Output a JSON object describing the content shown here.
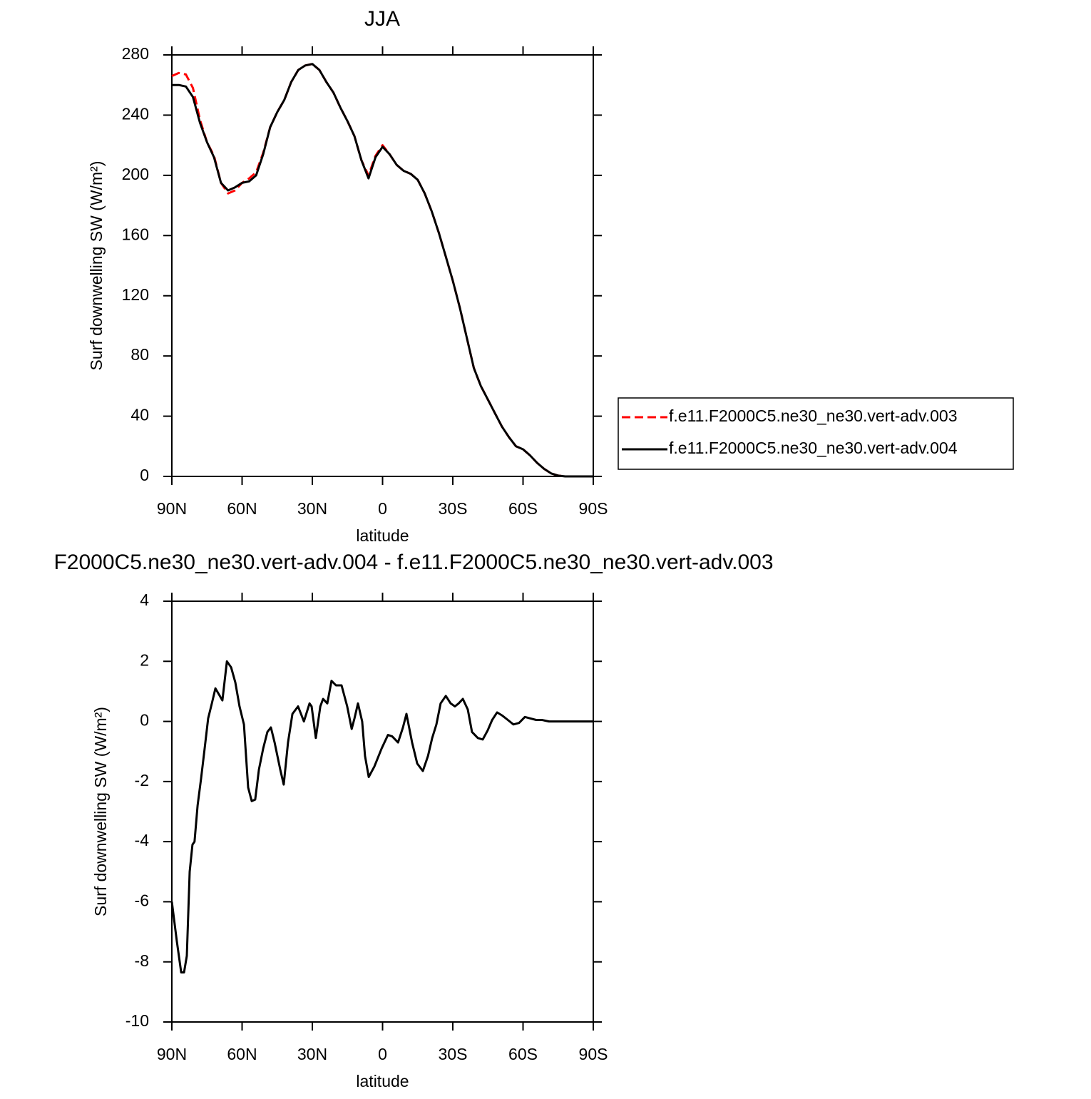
{
  "chart_data": [
    {
      "type": "line",
      "title": "JJA",
      "x_label": "latitude",
      "y_label": "Surf downwelling SW (W/m²)",
      "xlim": [
        90,
        -90
      ],
      "xticks": [
        {
          "value": 90,
          "label": "90N"
        },
        {
          "value": 60,
          "label": "60N"
        },
        {
          "value": 30,
          "label": "30N"
        },
        0,
        {
          "value": -30,
          "label": "30S"
        },
        {
          "value": -60,
          "label": "60S"
        },
        {
          "value": -90,
          "label": "90S"
        }
      ],
      "ylim": [
        0,
        280
      ],
      "yticks": [
        0,
        40,
        80,
        120,
        160,
        200,
        240,
        280
      ],
      "legend": "right",
      "x": [
        90,
        87,
        84,
        81,
        78,
        75,
        72,
        69,
        66,
        63,
        60,
        57,
        54,
        51,
        48,
        45,
        42,
        39,
        36,
        33,
        30,
        27,
        24,
        21,
        18,
        15,
        12,
        9,
        6,
        3,
        0,
        -3,
        -6,
        -9,
        -12,
        -15,
        -18,
        -21,
        -24,
        -27,
        -30,
        -33,
        -36,
        -39,
        -42,
        -45,
        -48,
        -51,
        -54,
        -57,
        -60,
        -63,
        -66,
        -69,
        -72,
        -75,
        -78,
        -81,
        -84,
        -87,
        -90
      ],
      "series": [
        {
          "name": "f.e11.F2000C5.ne30_ne30.vert-adv.003",
          "color": "#ff0000",
          "line_style": "dashed",
          "values": [
            266,
            268,
            267,
            258,
            237,
            222,
            213,
            195,
            188,
            190,
            195,
            198,
            202,
            215,
            232,
            242,
            250,
            262,
            270,
            273,
            274,
            270,
            262,
            255,
            245,
            236,
            226,
            210,
            200,
            213,
            220,
            214,
            207,
            203,
            201,
            197,
            188,
            176,
            162,
            146,
            130,
            112,
            92,
            72,
            60,
            51,
            42,
            33,
            26,
            20,
            18,
            14,
            9,
            5,
            2,
            0.5,
            0,
            0,
            0,
            0,
            0
          ]
        },
        {
          "name": "f.e11.F2000C5.ne30_ne30.vert-adv.004",
          "color": "#000000",
          "line_style": "solid",
          "values": [
            260,
            260,
            259,
            252,
            235,
            222,
            212,
            195,
            190,
            192,
            195,
            196,
            200,
            214,
            232,
            242,
            250,
            262,
            270,
            273,
            274,
            270,
            262,
            255,
            245,
            236,
            226,
            210,
            198,
            212,
            219,
            214,
            207,
            203,
            201,
            197,
            188,
            176,
            162,
            146,
            130,
            112,
            92,
            72,
            60,
            51,
            42,
            33,
            26,
            20,
            18,
            14,
            9,
            5,
            2,
            0.5,
            0,
            0,
            0,
            0,
            0
          ]
        }
      ]
    },
    {
      "type": "line",
      "title": "F2000C5.ne30_ne30.vert-adv.004 - f.e11.F2000C5.ne30_ne30.vert-adv.003",
      "x_label": "latitude",
      "y_label": "Surf downwelling SW (W/m²)",
      "xlim": [
        90,
        -90
      ],
      "xticks": [
        {
          "value": 90,
          "label": "90N"
        },
        {
          "value": 60,
          "label": "60N"
        },
        {
          "value": 30,
          "label": "30N"
        },
        0,
        {
          "value": -30,
          "label": "30S"
        },
        {
          "value": -60,
          "label": "60S"
        },
        {
          "value": -90,
          "label": "90S"
        }
      ],
      "ylim": [
        -10,
        4
      ],
      "yticks": [
        -10,
        -8,
        -6,
        -4,
        -2,
        0,
        2,
        4
      ],
      "x": [
        90,
        87.9,
        86.0,
        84.8,
        83.6,
        82.4,
        81.2,
        80.3,
        79.0,
        77.5,
        76.0,
        74.5,
        72.9,
        71.4,
        69.9,
        68.4,
        66.5,
        64.7,
        62.9,
        61.1,
        59.2,
        57.4,
        55.9,
        54.4,
        52.8,
        51.0,
        49.2,
        47.7,
        46.1,
        43.7,
        42.2,
        40.4,
        38.5,
        36.1,
        33.6,
        31.2,
        30.3,
        28.5,
        26.6,
        25.4,
        23.6,
        21.8,
        19.9,
        17.5,
        15.1,
        13.2,
        12.0,
        10.5,
        8.7,
        7.5,
        5.9,
        3.5,
        0.4,
        -2.3,
        -4.1,
        -6.6,
        -8.7,
        -10.2,
        -12.6,
        -14.8,
        -17.2,
        -19.4,
        -21.2,
        -23.0,
        -24.8,
        -27.0,
        -29.1,
        -30.9,
        -32.5,
        -34.3,
        -36.4,
        -38.2,
        -40.7,
        -42.8,
        -44.9,
        -46.8,
        -48.9,
        -51.0,
        -53.5,
        -55.9,
        -58.3,
        -60.8,
        -63.2,
        -65.6,
        -68.1,
        -71.1,
        -77.2,
        -90
      ],
      "series": [
        {
          "color": "#000000",
          "line_style": "solid",
          "values": [
            -6.0,
            -7.3,
            -8.35,
            -8.35,
            -7.8,
            -5.0,
            -4.1,
            -4.0,
            -2.8,
            -1.9,
            -0.9,
            0.1,
            0.6,
            1.1,
            0.9,
            0.7,
            2.0,
            1.8,
            1.3,
            0.5,
            -0.1,
            -2.2,
            -2.65,
            -2.6,
            -1.6,
            -0.9,
            -0.35,
            -0.2,
            -0.7,
            -1.6,
            -2.1,
            -0.7,
            0.25,
            0.5,
            0.0,
            0.6,
            0.5,
            -0.55,
            0.5,
            0.75,
            0.6,
            1.35,
            1.2,
            1.2,
            0.5,
            -0.25,
            0.1,
            0.6,
            0.0,
            -1.15,
            -1.85,
            -1.5,
            -0.9,
            -0.45,
            -0.5,
            -0.7,
            -0.2,
            0.25,
            -0.7,
            -1.4,
            -1.65,
            -1.15,
            -0.55,
            -0.1,
            0.6,
            0.85,
            0.6,
            0.5,
            0.6,
            0.75,
            0.4,
            -0.35,
            -0.55,
            -0.6,
            -0.3,
            0.05,
            0.3,
            0.2,
            0.05,
            -0.1,
            -0.05,
            0.15,
            0.1,
            0.05,
            0.05,
            0.0,
            0,
            0
          ]
        }
      ]
    }
  ]
}
